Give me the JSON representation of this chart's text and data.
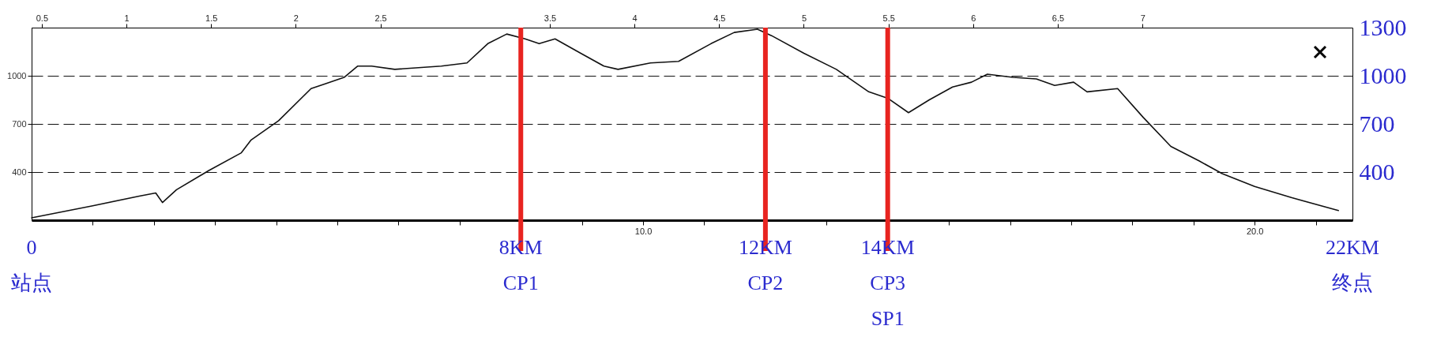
{
  "chart_data": {
    "type": "line",
    "x": [
      0,
      1.0,
      1.76,
      2.03,
      2.14,
      2.37,
      2.9,
      3.43,
      3.59,
      4.04,
      4.57,
      4.8,
      5.11,
      5.33,
      5.56,
      5.94,
      6.7,
      7.12,
      7.46,
      7.77,
      8.07,
      8.3,
      8.56,
      8.98,
      9.36,
      9.59,
      10.12,
      10.58,
      11.11,
      11.49,
      11.87,
      12.1,
      12.63,
      13.16,
      13.69,
      14.0,
      14.34,
      14.68,
      15.06,
      15.37,
      15.63,
      16.05,
      16.43,
      16.73,
      17.04,
      17.26,
      17.76,
      18.18,
      18.63,
      19.09,
      19.47,
      20.0,
      20.61,
      21.37
    ],
    "series": [
      {
        "color": "#111111",
        "values": [
          115,
          190,
          250,
          270,
          210,
          290,
          410,
          520,
          600,
          720,
          920,
          950,
          990,
          1060,
          1060,
          1040,
          1060,
          1080,
          1200,
          1260,
          1230,
          1200,
          1230,
          1140,
          1060,
          1040,
          1080,
          1090,
          1200,
          1270,
          1290,
          1250,
          1140,
          1040,
          900,
          860,
          770,
          850,
          930,
          960,
          1010,
          990,
          980,
          940,
          960,
          900,
          920,
          740,
          560,
          470,
          390,
          310,
          240,
          160
        ]
      }
    ],
    "xlim": [
      0,
      21.6
    ],
    "xticks": [
      {
        "value": 1,
        "label": null
      },
      {
        "value": 2,
        "label": null
      },
      {
        "value": 3,
        "label": null
      },
      {
        "value": 4,
        "label": null
      },
      {
        "value": 5,
        "label": null
      },
      {
        "value": 6,
        "label": null
      },
      {
        "value": 7,
        "label": null
      },
      {
        "value": 8,
        "label": null
      },
      {
        "value": 9,
        "label": null
      },
      {
        "value": 10,
        "label": "10.0"
      },
      {
        "value": 11,
        "label": null
      },
      {
        "value": 12,
        "label": null
      },
      {
        "value": 13,
        "label": null
      },
      {
        "value": 14,
        "label": null
      },
      {
        "value": 15,
        "label": null
      },
      {
        "value": 16,
        "label": null
      },
      {
        "value": 17,
        "label": null
      },
      {
        "value": 18,
        "label": null
      },
      {
        "value": 19,
        "label": null
      },
      {
        "value": 20,
        "label": "20.0"
      },
      {
        "value": 21,
        "label": null
      }
    ],
    "x2lim": [
      0.44,
      8.24
    ],
    "x2ticks": [
      0.5,
      1,
      1.5,
      2,
      2.5,
      3.5,
      4,
      4.5,
      5,
      5.5,
      6,
      6.5,
      7
    ],
    "ylim": [
      100,
      1300
    ],
    "yticks": [
      400,
      700,
      1000
    ],
    "y2lim": [
      100,
      1300
    ],
    "y2ticks": [
      400,
      700,
      1000,
      1300
    ],
    "grid": "y",
    "line_style": "solid",
    "ref_lines": [
      {
        "axis": "x",
        "value": 8,
        "label": "8KM\nCP1",
        "color": "#e82420"
      },
      {
        "axis": "x",
        "value": 12,
        "label": "12KM\nCP2",
        "color": "#e82420"
      },
      {
        "axis": "x",
        "value": 14,
        "label": "14KM\nCP3\nSP1",
        "color": "#e82420"
      }
    ],
    "annotations": [
      "0\n站点",
      "22KM\n终点"
    ]
  }
}
